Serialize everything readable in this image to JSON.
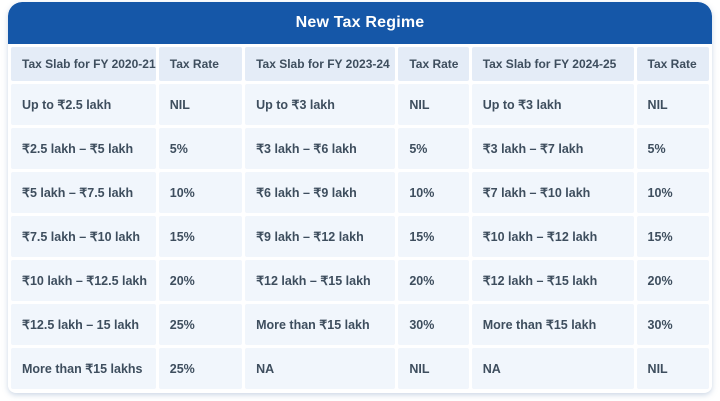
{
  "title": "New Tax Regime",
  "chart_data": {
    "type": "table",
    "title": "New Tax Regime",
    "columns": [
      "Tax Slab for FY 2020-21",
      "Tax Rate",
      "Tax Slab for FY 2023-24",
      "Tax Rate",
      "Tax Slab for FY 2024-25",
      "Tax Rate"
    ],
    "rows": [
      [
        "Up to ₹2.5 lakh",
        "NIL",
        "Up to ₹3 lakh",
        "NIL",
        "Up to ₹3 lakh",
        "NIL"
      ],
      [
        "₹2.5 lakh – ₹5 lakh",
        "5%",
        "₹3 lakh – ₹6 lakh",
        "5%",
        "₹3 lakh – ₹7 lakh",
        "5%"
      ],
      [
        "₹5 lakh – ₹7.5 lakh",
        "10%",
        "₹6 lakh – ₹9 lakh",
        "10%",
        "₹7 lakh – ₹10 lakh",
        "10%"
      ],
      [
        "₹7.5 lakh – ₹10 lakh",
        "15%",
        "₹9 lakh – ₹12 lakh",
        "15%",
        "₹10 lakh – ₹12 lakh",
        "15%"
      ],
      [
        "₹10 lakh – ₹12.5 lakh",
        "20%",
        "₹12 lakh – ₹15 lakh",
        "20%",
        "₹12 lakh – ₹15 lakh",
        "20%"
      ],
      [
        "₹12.5 lakh – 15 lakh",
        "25%",
        "More than ₹15 lakh",
        "30%",
        "More than ₹15 lakh",
        "30%"
      ],
      [
        "More than ₹15 lakhs",
        "25%",
        "NA",
        "NIL",
        "NA",
        "NIL"
      ]
    ]
  },
  "colors": {
    "title_bar_blue": "#1557a8",
    "header_row_bg": "#e4ecf7",
    "cell_bg": "#f1f6fc",
    "text": "#3e4e5e",
    "card_bg": "#ffffff"
  }
}
